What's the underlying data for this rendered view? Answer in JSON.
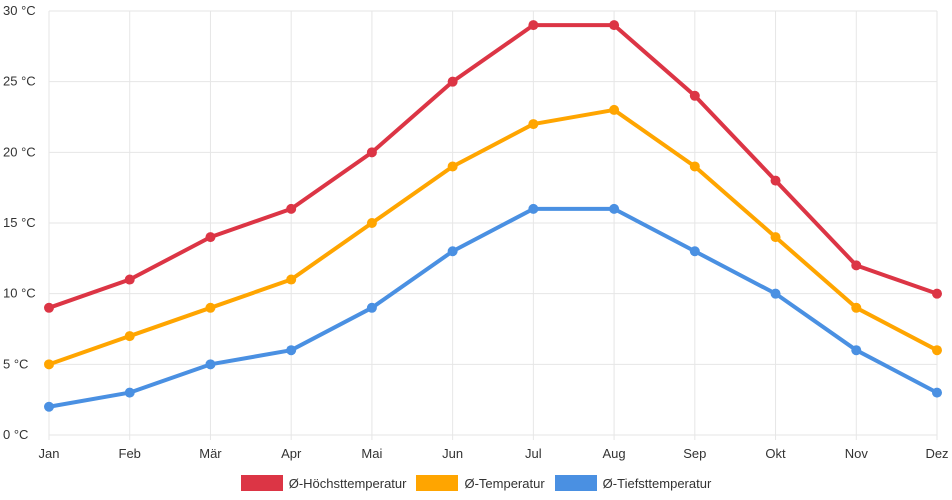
{
  "chart_data": {
    "type": "line",
    "categories": [
      "Jan",
      "Feb",
      "Mär",
      "Apr",
      "Mai",
      "Jun",
      "Jul",
      "Aug",
      "Sep",
      "Okt",
      "Nov",
      "Dez"
    ],
    "ylim": [
      0,
      30
    ],
    "yticks": [
      0,
      5,
      10,
      15,
      20,
      25,
      30
    ],
    "ytick_labels": [
      "0 °C",
      "5 °C",
      "10 °C",
      "15 °C",
      "20 °C",
      "25 °C",
      "30 °C"
    ],
    "grid": true,
    "legend_position": "bottom",
    "series": [
      {
        "name": "Ø-Höchsttemperatur",
        "color": "#dc3545",
        "values": [
          9,
          11,
          14,
          16,
          20,
          25,
          29,
          29,
          24,
          18,
          12,
          10
        ]
      },
      {
        "name": "Ø-Temperatur",
        "color": "#ffa500",
        "values": [
          5,
          7,
          9,
          11,
          15,
          19,
          22,
          23,
          19,
          14,
          9,
          6
        ]
      },
      {
        "name": "Ø-Tiefsttemperatur",
        "color": "#4a90e2",
        "values": [
          2,
          3,
          5,
          6,
          9,
          13,
          16,
          16,
          13,
          10,
          6,
          3
        ]
      }
    ]
  }
}
